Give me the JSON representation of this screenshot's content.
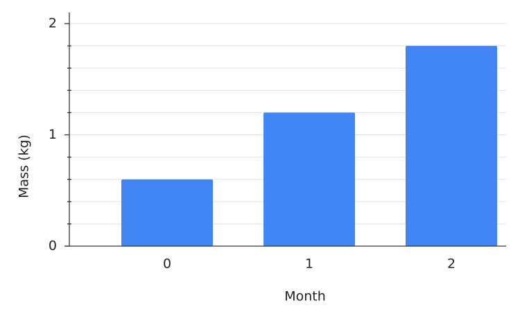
{
  "chart_data": {
    "type": "bar",
    "x_label": "Month",
    "y_label": "Mass (kg)",
    "categories": [
      "0",
      "1",
      "2"
    ],
    "values": [
      0.6,
      1.2,
      1.8
    ],
    "color": "#4285f4",
    "ylim": [
      0,
      2.1
    ],
    "yticks": [
      0,
      1,
      2
    ],
    "yticks_minor": [
      0.2,
      0.4,
      0.6,
      0.8,
      1.2,
      1.4,
      1.6,
      1.8
    ],
    "grid": true
  }
}
